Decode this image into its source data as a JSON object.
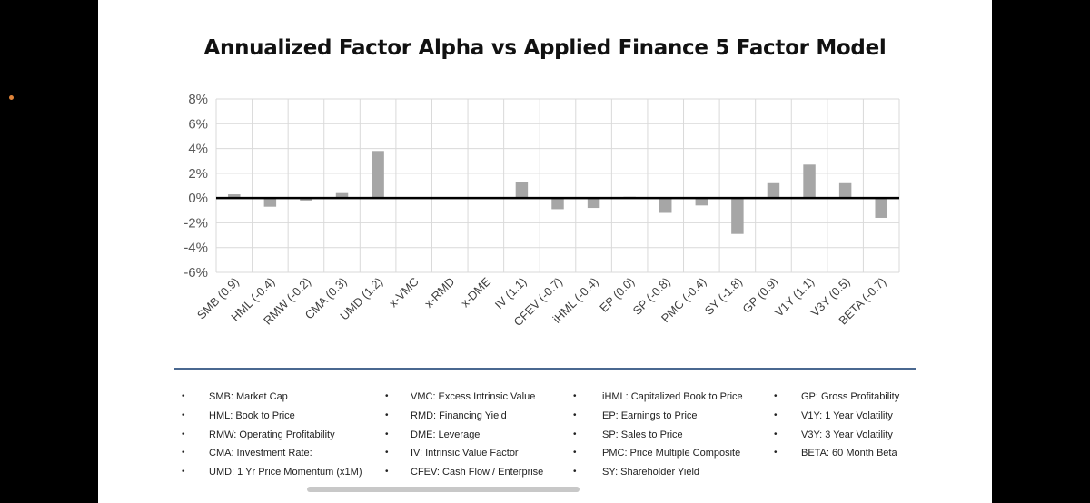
{
  "colors": {
    "background": "#000000",
    "slide": "#ffffff",
    "bar": "#a6a6a6",
    "grid": "#d9d9d9",
    "zero_line": "#000000",
    "divider": "#4a6890",
    "accent_dot": "#e0843a"
  },
  "chart_data": {
    "type": "bar",
    "title": "Annualized Factor Alpha vs Applied Finance 5 Factor Model",
    "xlabel": "",
    "ylabel": "",
    "ylim": [
      -6,
      8
    ],
    "yticks": [
      8,
      6,
      4,
      2,
      0,
      -2,
      -4,
      -6
    ],
    "ytick_labels": [
      "8%",
      "6%",
      "4%",
      "2%",
      "0%",
      "-2%",
      "-4%",
      "-6%"
    ],
    "grid": true,
    "categories": [
      "SMB (0.9)",
      "HML (-0.4)",
      "RMW (-0.2)",
      "CMA (0.3)",
      "UMD (1.2)",
      "x-VMC",
      "x-RMD",
      "x-DME",
      "IV (1.1)",
      "CFEV (-0.7)",
      "iHML (-0.4)",
      "EP (0.0)",
      "SP (-0.8)",
      "PMC (-0.4)",
      "SY (-1.8)",
      "GP (0.9)",
      "V1Y (1.1)",
      "V3Y (0.5)",
      "BETA (-0.7)"
    ],
    "values": [
      0.3,
      -0.7,
      -0.2,
      0.4,
      3.8,
      null,
      null,
      null,
      1.3,
      -0.9,
      -0.8,
      0.1,
      -1.2,
      -0.6,
      -2.9,
      1.2,
      2.7,
      1.2,
      -1.6
    ]
  },
  "legend": {
    "columns": [
      [
        {
          "bullet": "•",
          "text": "SMB: Market Cap"
        },
        {
          "bullet": "•",
          "text": "HML: Book to Price"
        },
        {
          "bullet": "•",
          "text": "RMW: Operating Profitability"
        },
        {
          "bullet": "•",
          "text": "CMA: Investment Rate:"
        },
        {
          "bullet": "•",
          "text": "UMD: 1 Yr Price Momentum (x1M)"
        }
      ],
      [
        {
          "bullet": "•",
          "text": "VMC: Excess Intrinsic Value"
        },
        {
          "bullet": "•",
          "text": "RMD: Financing Yield"
        },
        {
          "bullet": "•",
          "text": "DME: Leverage"
        },
        {
          "bullet": "•",
          "text": "IV: Intrinsic Value Factor"
        },
        {
          "bullet": "•",
          "text": "CFEV: Cash Flow / Enterprise"
        }
      ],
      [
        {
          "bullet": "•",
          "text": "iHML: Capitalized Book to Price"
        },
        {
          "bullet": "•",
          "text": "EP: Earnings to Price"
        },
        {
          "bullet": "•",
          "text": "SP: Sales to Price"
        },
        {
          "bullet": "•",
          "text": "PMC: Price Multiple Composite"
        },
        {
          "bullet": "•",
          "text": "SY: Shareholder Yield"
        }
      ],
      [
        {
          "bullet": "•",
          "text": "GP: Gross Profitability"
        },
        {
          "bullet": "•",
          "text": "V1Y: 1 Year Volatility"
        },
        {
          "bullet": "•",
          "text": "V3Y: 3 Year Volatility"
        },
        {
          "bullet": "•",
          "text": "BETA: 60 Month Beta"
        }
      ]
    ]
  }
}
